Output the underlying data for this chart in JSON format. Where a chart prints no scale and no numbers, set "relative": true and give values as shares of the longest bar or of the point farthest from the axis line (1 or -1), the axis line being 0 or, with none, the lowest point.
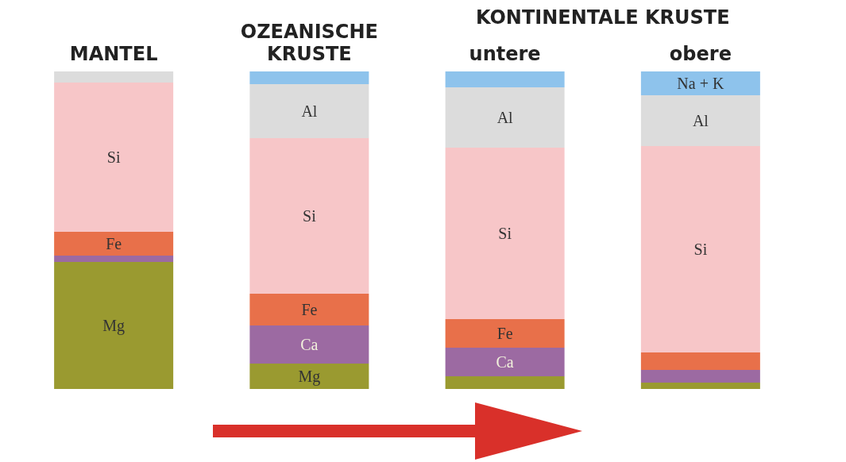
{
  "chart_data": {
    "type": "bar",
    "stacked": true,
    "relative": true,
    "legend": false,
    "categories": [
      "MANTEL",
      "OZEANISCHE\nKRUSTE",
      "untere",
      "obere"
    ],
    "annotations": [
      "KONTINENTALE KRUSTE"
    ],
    "series": [
      {
        "name": "Mg",
        "color": "#9a9a30",
        "values": [
          0.4,
          0.08,
          0.04,
          0.02
        ]
      },
      {
        "name": "Ca",
        "color": "#9c6aa2",
        "values": [
          0.02,
          0.12,
          0.09,
          0.04
        ]
      },
      {
        "name": "Fe",
        "color": "#e8704a",
        "values": [
          0.075,
          0.1,
          0.09,
          0.055
        ]
      },
      {
        "name": "Si",
        "color": "#f7c6c8",
        "values": [
          0.47,
          0.49,
          0.54,
          0.65
        ]
      },
      {
        "name": "Al",
        "color": "#dcdcdc",
        "values": [
          0.035,
          0.17,
          0.19,
          0.16
        ]
      },
      {
        "name": "Na + K",
        "color": "#8ec3ec",
        "values": [
          null,
          0.04,
          0.05,
          0.075
        ]
      }
    ]
  }
}
